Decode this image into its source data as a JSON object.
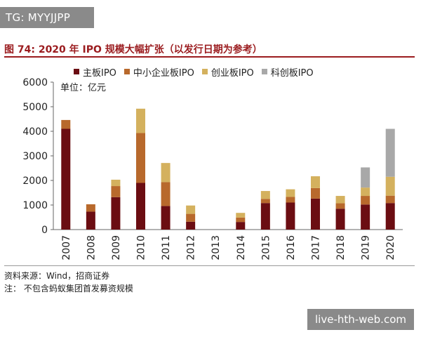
{
  "watermark_top": "TG: MYYJJPP",
  "watermark_bottom": "live-hth-web.com",
  "figure_title": "图 74:  2020 年 IPO 规模大幅扩张（以发行日期为参考）",
  "source": "资料来源：Wind，招商证券",
  "note": "注：  不包含蚂蚁集团首发募资规模",
  "chart_data": {
    "type": "bar",
    "stacked": true,
    "unit_label": "单位：亿元",
    "categories": [
      "2007",
      "2008",
      "2009",
      "2010",
      "2011",
      "2012",
      "2013",
      "2014",
      "2015",
      "2016",
      "2017",
      "2018",
      "2019",
      "2020"
    ],
    "ylim": [
      0,
      6000
    ],
    "yticks": [
      0,
      1000,
      2000,
      3000,
      4000,
      5000,
      6000
    ],
    "legend_position": "top",
    "grid": false,
    "series": [
      {
        "name": "主板IPO",
        "color": "#6b0d12",
        "values": [
          4100,
          730,
          1320,
          1900,
          960,
          320,
          0,
          310,
          1080,
          1100,
          1260,
          850,
          1020,
          1080
        ]
      },
      {
        "name": "中小企业板IPO",
        "color": "#b8692c",
        "values": [
          360,
          300,
          450,
          2030,
          970,
          320,
          0,
          180,
          170,
          230,
          430,
          220,
          350,
          300
        ]
      },
      {
        "name": "创业板IPO",
        "color": "#d4b15e",
        "values": [
          0,
          0,
          260,
          990,
          780,
          340,
          0,
          190,
          320,
          310,
          480,
          300,
          340,
          770
        ]
      },
      {
        "name": "科创板IPO",
        "color": "#a8a8a8",
        "values": [
          0,
          0,
          0,
          0,
          0,
          0,
          0,
          0,
          0,
          0,
          0,
          0,
          820,
          1950
        ]
      }
    ]
  }
}
